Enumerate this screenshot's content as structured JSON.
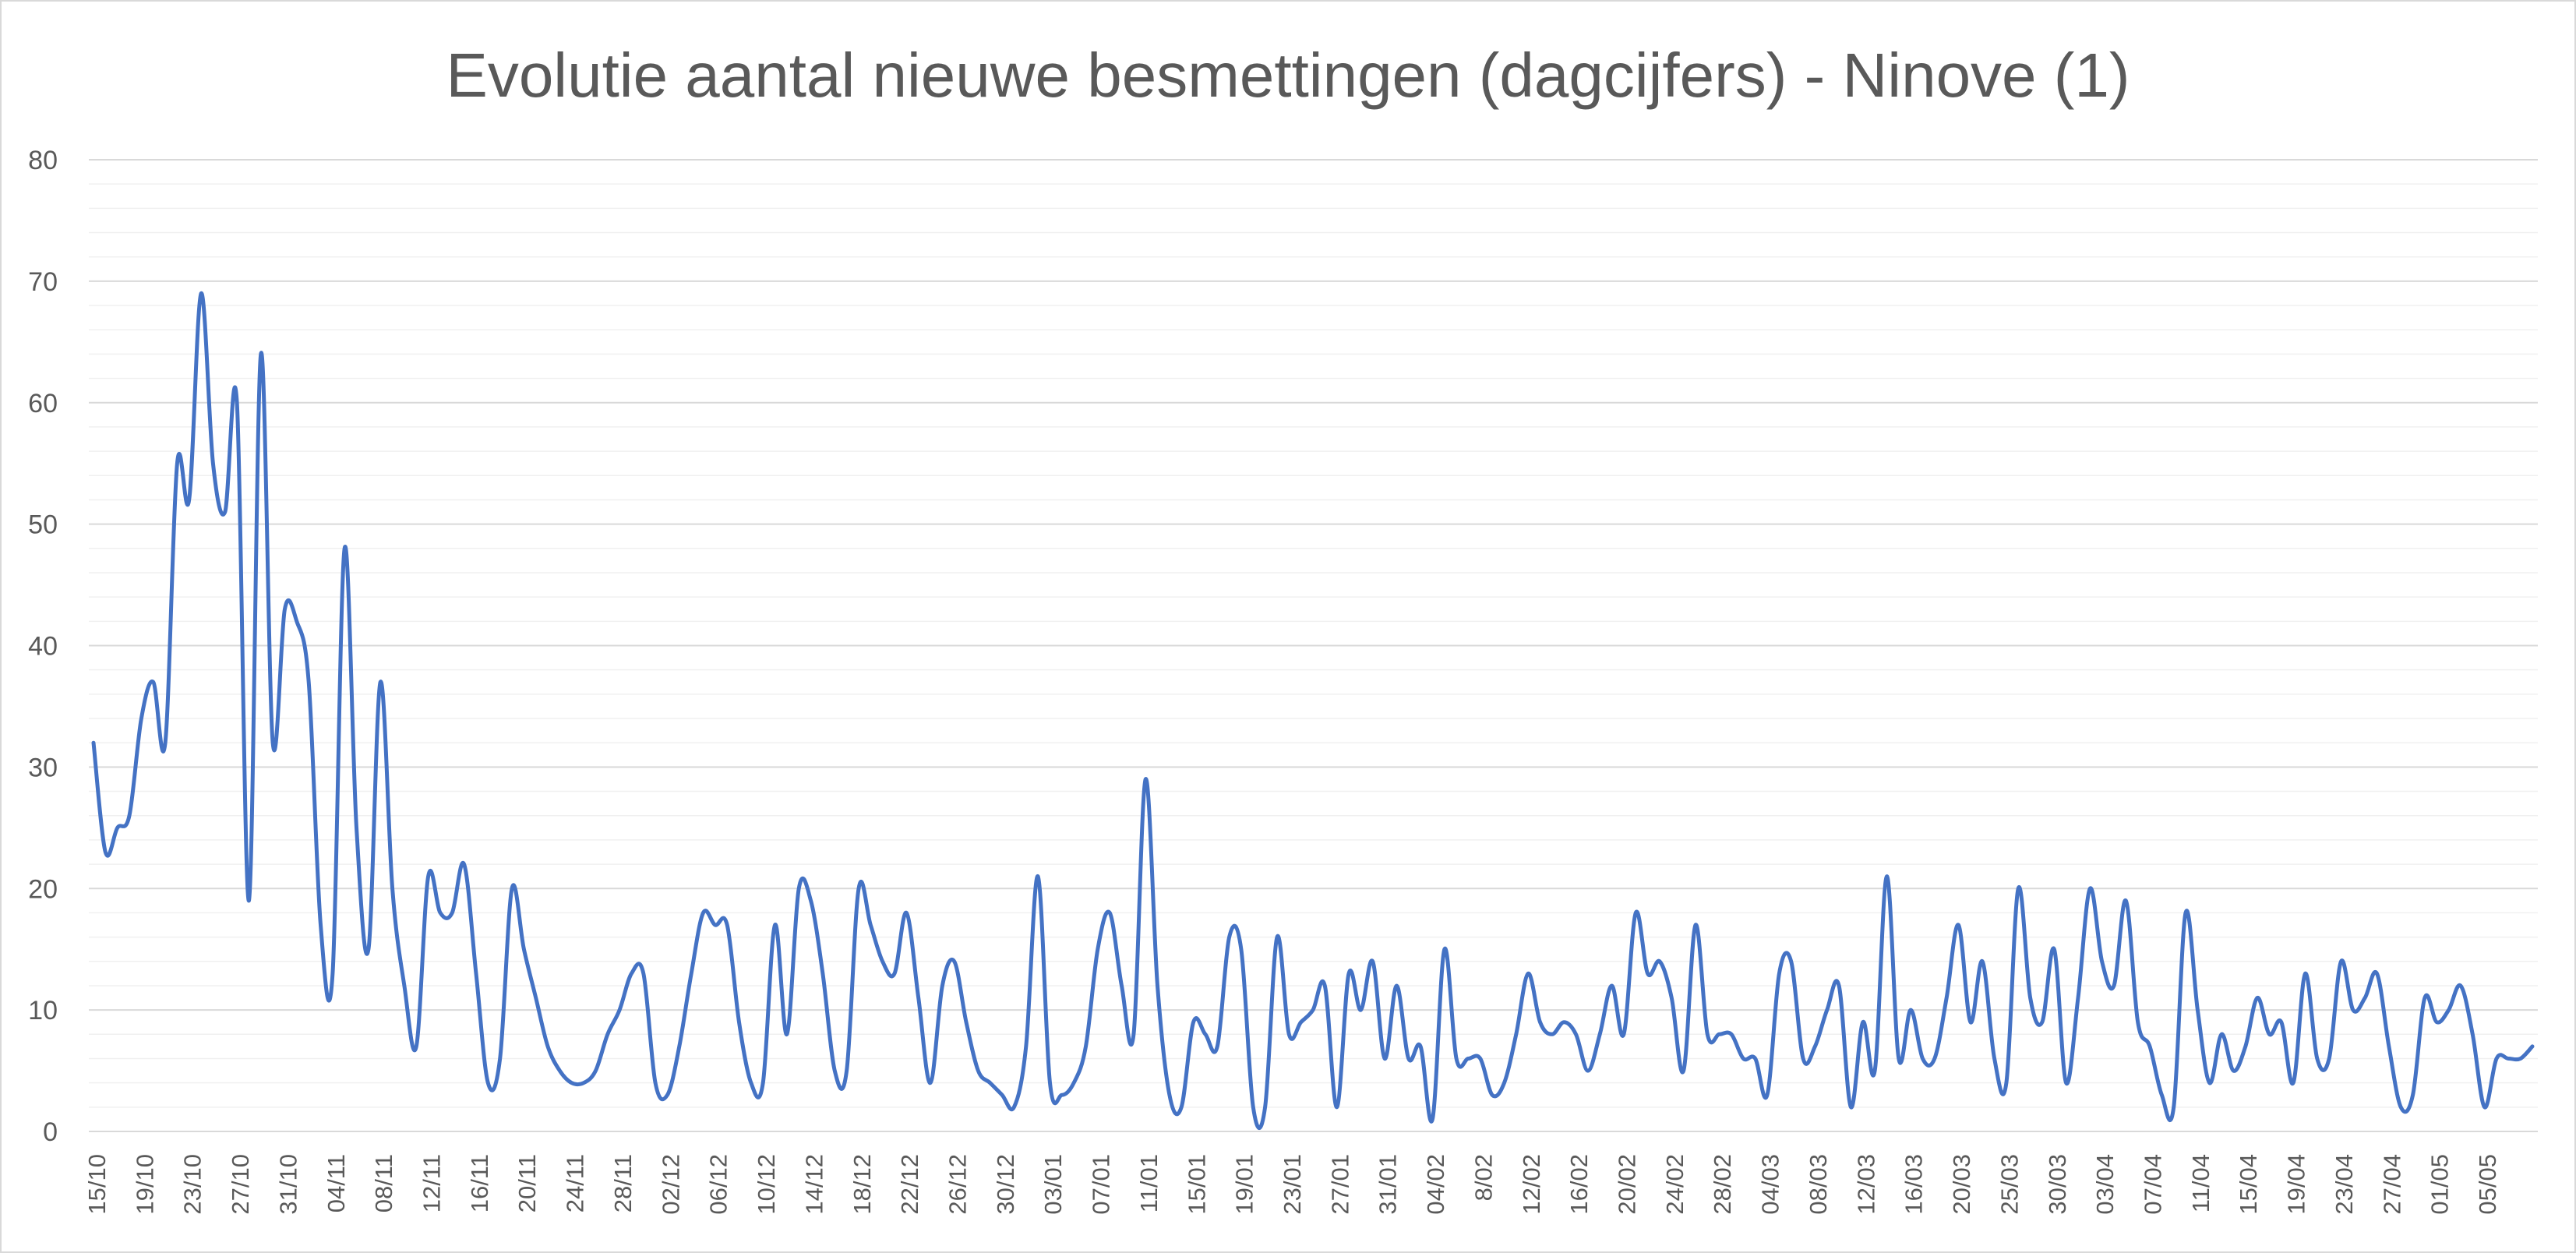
{
  "chart_data": {
    "type": "line",
    "title": "Evolutie aantal nieuwe besmettingen (dagcijfers) - Ninove (1)",
    "xlabel": "",
    "ylabel": "",
    "ylim": [
      0,
      80
    ],
    "yticks": [
      0,
      10,
      20,
      30,
      40,
      50,
      60,
      70,
      80
    ],
    "grid": "major and minor horizontal",
    "legend": "none",
    "line_color": "#4472c4",
    "x_tick_labels": [
      "15/10",
      "19/10",
      "23/10",
      "27/10",
      "31/10",
      "04/11",
      "08/11",
      "12/11",
      "16/11",
      "20/11",
      "24/11",
      "28/11",
      "02/12",
      "06/12",
      "10/12",
      "14/12",
      "18/12",
      "22/12",
      "26/12",
      "30/12",
      "03/01",
      "07/01",
      "11/01",
      "15/01",
      "19/01",
      "23/01",
      "27/01",
      "31/01",
      "04/02",
      "8/02",
      "12/02",
      "16/02",
      "20/02",
      "24/02",
      "28/02",
      "04/03",
      "08/03",
      "12/03",
      "16/03",
      "20/03",
      "25/03",
      "30/03",
      "03/04",
      "07/04",
      "11/04",
      "15/04",
      "19/04",
      "23/04",
      "27/04",
      "01/05",
      "05/05"
    ],
    "values": [
      32,
      23,
      25,
      26,
      34,
      37,
      32,
      55,
      52,
      69,
      55,
      51,
      60,
      19,
      64,
      32,
      43,
      42,
      37,
      17,
      13,
      48,
      25,
      15,
      37,
      20,
      12,
      7,
      21,
      18,
      18,
      22,
      13,
      4,
      6,
      20,
      15,
      11,
      7,
      5,
      4,
      4,
      5,
      8,
      10,
      13,
      13,
      4,
      3,
      7,
      13,
      18,
      17,
      17,
      9,
      4,
      4,
      17,
      8,
      20,
      19,
      13,
      5,
      5,
      20,
      17,
      14,
      13,
      18,
      11,
      4,
      12,
      14,
      9,
      5,
      4,
      3,
      2,
      7,
      21,
      4,
      3,
      4,
      7,
      15,
      18,
      12,
      8,
      29,
      12,
      3,
      2,
      9,
      8,
      7,
      16,
      15,
      2,
      2,
      16,
      8,
      9,
      10,
      12,
      2,
      13,
      10,
      14,
      6,
      12,
      6,
      7,
      1,
      15,
      6,
      6,
      6,
      3,
      4,
      8,
      13,
      9,
      8,
      9,
      8,
      5,
      8,
      12,
      8,
      18,
      13,
      14,
      11,
      5,
      17,
      8,
      8,
      8,
      6,
      6,
      3,
      13,
      14,
      6,
      7,
      10,
      12,
      2,
      9,
      5,
      21,
      6,
      10,
      6,
      6,
      11,
      17,
      9,
      14,
      6,
      4,
      20,
      11,
      9,
      15,
      4,
      11,
      20,
      14,
      12,
      19,
      9,
      7,
      3,
      2,
      18,
      10,
      4,
      8,
      5,
      7,
      11,
      8,
      9,
      4,
      13,
      6,
      6,
      14,
      10,
      11,
      13,
      7,
      2,
      3,
      11,
      9,
      10,
      12,
      8,
      2,
      6,
      6,
      6,
      7
    ]
  }
}
